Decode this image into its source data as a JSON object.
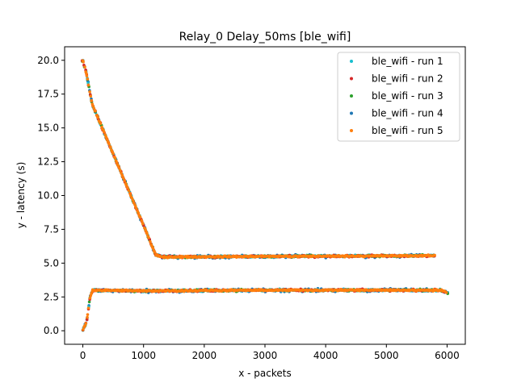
{
  "chart_data": {
    "type": "scatter",
    "title": "Relay_0 Delay_50ms [ble_wifi]",
    "xlabel": "x - packets",
    "ylabel": "y - latency (s)",
    "xlim": [
      -300,
      6300
    ],
    "ylim": [
      -1.0,
      21.0
    ],
    "xticks": [
      0,
      1000,
      2000,
      3000,
      4000,
      5000,
      6000
    ],
    "yticks": [
      0.0,
      2.5,
      5.0,
      7.5,
      10.0,
      12.5,
      15.0,
      17.5,
      20.0
    ],
    "ytick_labels": [
      "0.0",
      "2.5",
      "5.0",
      "7.5",
      "10.0",
      "12.5",
      "15.0",
      "17.5",
      "20.0"
    ],
    "grid": false,
    "legend_position": "top-right",
    "series": [
      {
        "name": "ble_wifi - run 1",
        "color": "#17becf"
      },
      {
        "name": "ble_wifi - run 2",
        "color": "#d62728"
      },
      {
        "name": "ble_wifi - run 3",
        "color": "#2ca02c"
      },
      {
        "name": "ble_wifi - run 4",
        "color": "#1f77b4"
      },
      {
        "name": "ble_wifi - run 5",
        "color": "#ff7f0e"
      }
    ],
    "upper_band": {
      "description_points": [
        [
          0,
          20.0
        ],
        [
          60,
          19.0
        ],
        [
          150,
          16.8
        ],
        [
          600,
          12.0
        ],
        [
          1000,
          7.8
        ],
        [
          1200,
          5.6
        ],
        [
          1300,
          5.45
        ],
        [
          3000,
          5.5
        ],
        [
          5800,
          5.55
        ]
      ]
    },
    "lower_band": {
      "description_points": [
        [
          0,
          0.1
        ],
        [
          60,
          0.6
        ],
        [
          120,
          2.5
        ],
        [
          160,
          3.0
        ],
        [
          1000,
          2.95
        ],
        [
          3000,
          3.0
        ],
        [
          5900,
          3.0
        ],
        [
          6000,
          2.8
        ]
      ]
    }
  }
}
